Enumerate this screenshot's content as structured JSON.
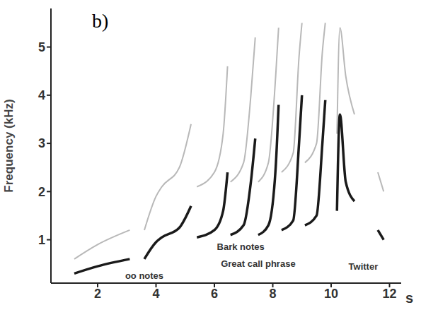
{
  "chart_data": {
    "type": "line",
    "title": "b)",
    "x_label": "s",
    "y_label": "Frequency (kHz)",
    "color": "#1a1a1a",
    "xlim": [
      0.4,
      12.4
    ],
    "xticks": [
      2,
      4,
      6,
      8,
      10,
      12
    ],
    "ylim": [
      0.1,
      5.8
    ],
    "yticks": [
      1,
      2,
      3,
      4,
      5
    ],
    "grid": false,
    "x": [
      1.2,
      2.0,
      3.1,
      3.35,
      3.6,
      4.0,
      4.2,
      4.8,
      5.2,
      5.3,
      5.4,
      6.0,
      6.3,
      6.45,
      6.5,
      6.55,
      7.0,
      7.25,
      7.4,
      7.45,
      7.5,
      7.85,
      8.1,
      8.2,
      8.25,
      8.3,
      8.7,
      8.9,
      9.0,
      9.05,
      9.1,
      9.5,
      9.7,
      9.8,
      10.0,
      10.2,
      10.3,
      10.5,
      10.8,
      11.2,
      11.6,
      11.8
    ],
    "values": [
      0.3,
      0.45,
      0.6,
      null,
      0.6,
      0.95,
      1.05,
      1.25,
      1.7,
      null,
      1.05,
      1.2,
      1.6,
      2.4,
      null,
      1.1,
      1.3,
      2.2,
      3.1,
      null,
      1.1,
      1.3,
      2.5,
      3.8,
      null,
      1.2,
      1.4,
      3.0,
      4.0,
      null,
      1.3,
      1.5,
      3.0,
      3.9,
      null,
      1.6,
      3.6,
      2.2,
      1.8,
      null,
      1.2,
      1.0
    ],
    "harmonic_values": [
      0.6,
      0.9,
      1.2,
      null,
      1.2,
      1.9,
      2.1,
      2.5,
      3.4,
      null,
      2.1,
      2.4,
      3.2,
      4.6,
      null,
      2.2,
      2.6,
      4.0,
      5.2,
      null,
      2.2,
      2.6,
      4.4,
      5.4,
      null,
      2.4,
      2.8,
      4.8,
      5.5,
      null,
      2.6,
      3.0,
      4.9,
      5.5,
      null,
      3.2,
      5.4,
      4.4,
      3.6,
      null,
      2.4,
      2.0
    ],
    "annotations": [
      {
        "text": "oo notes",
        "x": 3.6,
        "y": 0.25
      },
      {
        "text": "Bark notes",
        "x": 6.9,
        "y": 0.85
      },
      {
        "text": "Great call phrase",
        "x": 7.5,
        "y": 0.5
      },
      {
        "text": "Twitter",
        "x": 11.1,
        "y": 0.45
      }
    ]
  }
}
